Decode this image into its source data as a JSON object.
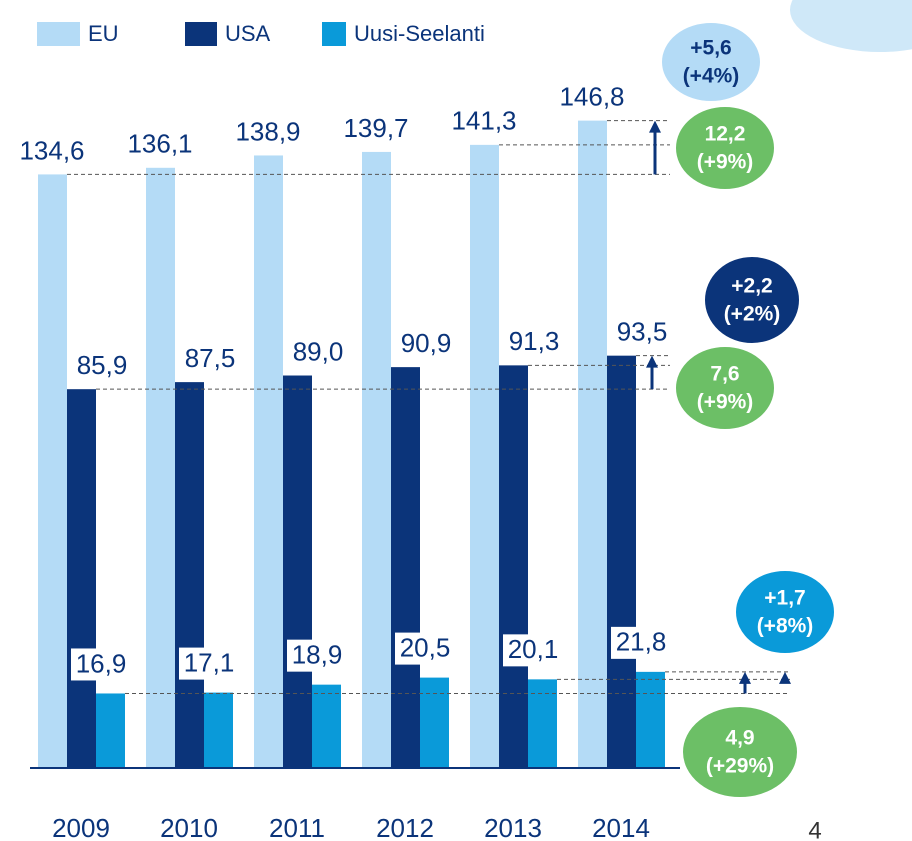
{
  "chart_data": {
    "type": "bar",
    "categories": [
      "2009",
      "2010",
      "2011",
      "2012",
      "2013",
      "2014"
    ],
    "series": [
      {
        "name": "EU",
        "color": "#b4dbf6",
        "values": [
          134.6,
          136.1,
          138.9,
          139.7,
          141.3,
          146.8
        ],
        "value_labels": [
          "134,6",
          "136,1",
          "138,9",
          "139,7",
          "141,3",
          "146,8"
        ]
      },
      {
        "name": "USA",
        "color": "#0b347a",
        "values": [
          85.9,
          87.5,
          89.0,
          90.9,
          91.3,
          93.5
        ],
        "value_labels": [
          "85,9",
          "87,5",
          "89,0",
          "90,9",
          "91,3",
          "93,5"
        ]
      },
      {
        "name": "Uusi-Seelanti",
        "color": "#0a9ad9",
        "values": [
          16.9,
          17.1,
          18.9,
          20.5,
          20.1,
          21.8
        ],
        "value_labels": [
          "16,9",
          "17,1",
          "18,9",
          "20,5",
          "20,1",
          "21,8"
        ]
      }
    ],
    "annotations": [
      {
        "lines": [
          "+5,6",
          "(+4%)"
        ],
        "color": "#b4dbf6",
        "text_color": "#0b347a"
      },
      {
        "lines": [
          "12,2",
          "(+9%)"
        ],
        "color": "#6cbf66",
        "text_color": "#ffffff"
      },
      {
        "lines": [
          "+2,2",
          "(+2%)"
        ],
        "color": "#0b347a",
        "text_color": "#ffffff"
      },
      {
        "lines": [
          "7,6",
          "(+9%)"
        ],
        "color": "#6cbf66",
        "text_color": "#ffffff"
      },
      {
        "lines": [
          "+1,7",
          "(+8%)"
        ],
        "color": "#0a9ad9",
        "text_color": "#ffffff"
      },
      {
        "lines": [
          "4,9",
          "(+29%)"
        ],
        "color": "#6cbf66",
        "text_color": "#ffffff"
      }
    ],
    "page_number": "4"
  }
}
